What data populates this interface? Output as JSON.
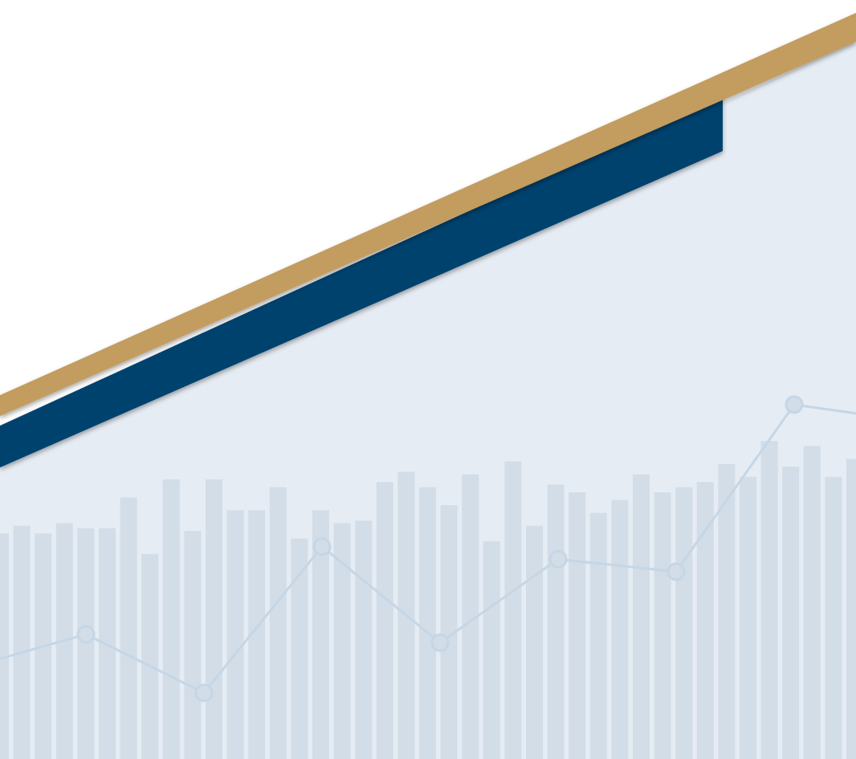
{
  "colors": {
    "background": "#ffffff",
    "panel": "#e5ecf3",
    "bar": "#d2dde8",
    "line": "#c5d6e6",
    "gold_stripe": "#c39c5e",
    "navy_band": "#05426e"
  },
  "background_pattern": {
    "bars": [
      0.69,
      0.72,
      0.69,
      0.73,
      0.71,
      0.71,
      0.83,
      0.61,
      0.9,
      0.7,
      0.9,
      0.78,
      0.78,
      0.87,
      0.67,
      0.78,
      0.73,
      0.74,
      0.89,
      0.93,
      0.87,
      0.8,
      0.92,
      0.66,
      0.97,
      0.72,
      0.88,
      0.85,
      0.77,
      0.82,
      0.92,
      0.85,
      0.87,
      0.89,
      0.96,
      0.91,
      1.05,
      0.95,
      1.03,
      0.91,
      0.98,
      1.0
    ],
    "line": [
      0.18,
      0.26,
      0.12,
      0.47,
      0.24,
      0.44,
      0.41,
      0.81,
      0.77
    ]
  },
  "decor": {
    "stripes": [
      "gold-stripe",
      "navy-band"
    ]
  }
}
